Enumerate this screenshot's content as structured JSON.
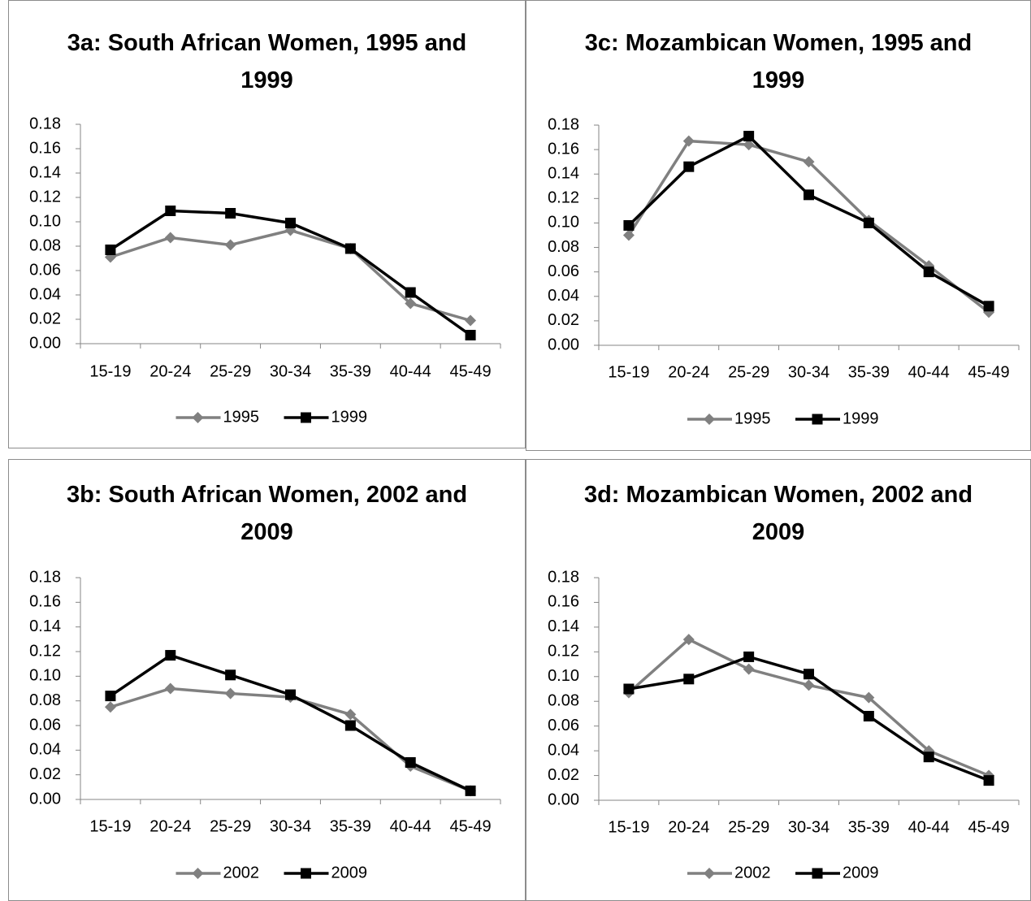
{
  "chart_data": [
    {
      "type": "line",
      "title": "3a: South African Women, 1995 and 1999",
      "categories": [
        "15-19",
        "20-24",
        "25-29",
        "30-34",
        "35-39",
        "40-44",
        "45-49"
      ],
      "series": [
        {
          "name": "1995",
          "color": "#808080",
          "marker": "diamond",
          "values": [
            0.071,
            0.087,
            0.081,
            0.093,
            0.078,
            0.033,
            0.019
          ]
        },
        {
          "name": "1999",
          "color": "#000000",
          "marker": "square",
          "values": [
            0.077,
            0.109,
            0.107,
            0.099,
            0.078,
            0.042,
            0.007
          ]
        }
      ],
      "ylim": [
        0,
        0.18
      ],
      "yticks": [
        {
          "value": 0,
          "label": "0.00"
        },
        {
          "value": 0.02,
          "label": "0.02"
        },
        {
          "value": 0.04,
          "label": "0.04"
        },
        {
          "value": 0.06,
          "label": "0.06"
        },
        {
          "value": 0.08,
          "label": "0.08"
        },
        {
          "value": 0.1,
          "label": "0.10"
        },
        {
          "value": 0.12,
          "label": "0.12"
        },
        {
          "value": 0.14,
          "label": "0.14"
        },
        {
          "value": 0.16,
          "label": "0.16"
        },
        {
          "value": 0.18,
          "label": "0.18"
        }
      ],
      "legend": "bottom"
    },
    {
      "type": "line",
      "title": "3c: Mozambican Women, 1995 and 1999",
      "categories": [
        "15-19",
        "20-24",
        "25-29",
        "30-34",
        "35-39",
        "40-44",
        "45-49"
      ],
      "series": [
        {
          "name": "1995",
          "color": "#808080",
          "marker": "diamond",
          "values": [
            0.09,
            0.167,
            0.164,
            0.15,
            0.102,
            0.065,
            0.027
          ]
        },
        {
          "name": "1999",
          "color": "#000000",
          "marker": "square",
          "values": [
            0.098,
            0.146,
            0.171,
            0.123,
            0.1,
            0.06,
            0.032
          ]
        }
      ],
      "ylim": [
        0,
        0.18
      ],
      "yticks": [
        {
          "value": 0,
          "label": "0.00"
        },
        {
          "value": 0.02,
          "label": "0.02"
        },
        {
          "value": 0.04,
          "label": "0.04"
        },
        {
          "value": 0.06,
          "label": "0.06"
        },
        {
          "value": 0.08,
          "label": "0.08"
        },
        {
          "value": 0.1,
          "label": "0.10"
        },
        {
          "value": 0.12,
          "label": "0.12"
        },
        {
          "value": 0.14,
          "label": "0.14"
        },
        {
          "value": 0.16,
          "label": "0.16"
        },
        {
          "value": 0.18,
          "label": "0.18"
        }
      ],
      "legend": "bottom"
    },
    {
      "type": "line",
      "title": "3b: South African Women, 2002 and 2009",
      "categories": [
        "15-19",
        "20-24",
        "25-29",
        "30-34",
        "35-39",
        "40-44",
        "45-49"
      ],
      "series": [
        {
          "name": "2002",
          "color": "#808080",
          "marker": "diamond",
          "values": [
            0.075,
            0.09,
            0.086,
            0.083,
            0.069,
            0.027,
            0.007
          ]
        },
        {
          "name": "2009",
          "color": "#000000",
          "marker": "square",
          "values": [
            0.084,
            0.117,
            0.101,
            0.085,
            0.06,
            0.03,
            0.007
          ]
        }
      ],
      "ylim": [
        0,
        0.18
      ],
      "yticks": [
        {
          "value": 0,
          "label": "0.00"
        },
        {
          "value": 0.02,
          "label": "0.02"
        },
        {
          "value": 0.04,
          "label": "0.04"
        },
        {
          "value": 0.06,
          "label": "0.06"
        },
        {
          "value": 0.08,
          "label": "0.08"
        },
        {
          "value": 0.1,
          "label": "0.10"
        },
        {
          "value": 0.12,
          "label": "0.12"
        },
        {
          "value": 0.14,
          "label": "0.14"
        },
        {
          "value": 0.16,
          "label": "0.16"
        },
        {
          "value": 0.18,
          "label": "0.18"
        }
      ],
      "legend": "bottom"
    },
    {
      "type": "line",
      "title": "3d: Mozambican Women, 2002 and 2009",
      "categories": [
        "15-19",
        "20-24",
        "25-29",
        "30-34",
        "35-39",
        "40-44",
        "45-49"
      ],
      "series": [
        {
          "name": "2002",
          "color": "#808080",
          "marker": "diamond",
          "values": [
            0.087,
            0.13,
            0.106,
            0.093,
            0.083,
            0.04,
            0.02
          ]
        },
        {
          "name": "2009",
          "color": "#000000",
          "marker": "square",
          "values": [
            0.09,
            0.098,
            0.116,
            0.102,
            0.068,
            0.035,
            0.016
          ]
        }
      ],
      "ylim": [
        0,
        0.18
      ],
      "yticks": [
        {
          "value": 0,
          "label": "0.00"
        },
        {
          "value": 0.02,
          "label": "0.02"
        },
        {
          "value": 0.04,
          "label": "0.04"
        },
        {
          "value": 0.06,
          "label": "0.06"
        },
        {
          "value": 0.08,
          "label": "0.08"
        },
        {
          "value": 0.1,
          "label": "0.10"
        },
        {
          "value": 0.12,
          "label": "0.12"
        },
        {
          "value": 0.14,
          "label": "0.14"
        },
        {
          "value": 0.16,
          "label": "0.16"
        },
        {
          "value": 0.18,
          "label": "0.18"
        }
      ],
      "legend": "bottom"
    }
  ]
}
